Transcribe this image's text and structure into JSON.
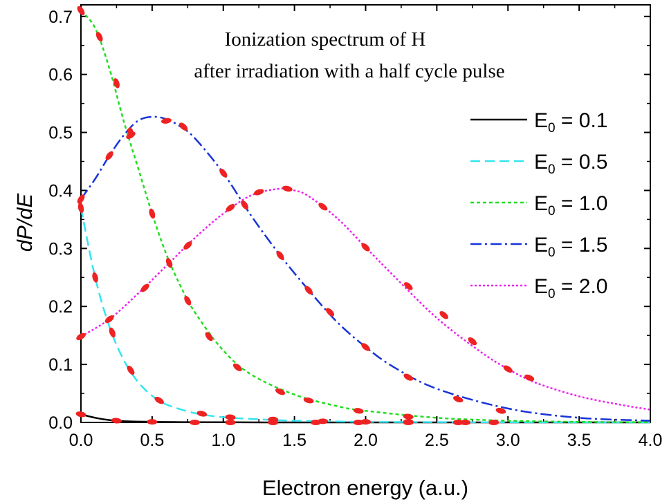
{
  "chart_data": {
    "type": "line",
    "title": "Ionization spectrum of H",
    "subtitle": "after irradiation with a half cycle pulse",
    "xlabel": "Electron energy (a.u.)",
    "ylabel": "dP/dE",
    "xlim": [
      0,
      4.0
    ],
    "ylim": [
      0,
      0.72
    ],
    "x_ticks": [
      "0.0",
      "0.5",
      "1.0",
      "1.5",
      "2.0",
      "2.5",
      "3.0",
      "3.5",
      "4.0"
    ],
    "y_ticks": [
      "0.0",
      "0.1",
      "0.2",
      "0.3",
      "0.4",
      "0.5",
      "0.6",
      "0.7"
    ],
    "grid": false,
    "legend_position": "right",
    "series": [
      {
        "name": "E0 = 0.1",
        "legend_main": "E",
        "legend_sub": "0",
        "legend_value": " = 0.1",
        "color": "#000000",
        "dash": "",
        "x": [
          0,
          0.1,
          0.2,
          0.3,
          0.5,
          0.7,
          1.0,
          1.5,
          2.0,
          3.0,
          4.0
        ],
        "y": [
          0.014,
          0.008,
          0.004,
          0.002,
          0.001,
          0.0005,
          0.0002,
          0,
          0,
          0,
          0
        ]
      },
      {
        "name": "E0 = 0.5",
        "legend_main": "E",
        "legend_sub": "0",
        "legend_value": " = 0.5",
        "color": "#33e5f0",
        "dash": "14 7",
        "x": [
          0,
          0.1,
          0.2,
          0.3,
          0.4,
          0.5,
          0.6,
          0.8,
          1.0,
          1.2,
          1.5,
          2.0,
          2.5,
          3.0,
          4.0
        ],
        "y": [
          0.37,
          0.25,
          0.165,
          0.108,
          0.07,
          0.046,
          0.031,
          0.016,
          0.009,
          0.006,
          0.003,
          0.001,
          0.0005,
          0.0002,
          0
        ]
      },
      {
        "name": "E0 = 1.0",
        "legend_main": "E",
        "legend_sub": "0",
        "legend_value": " = 1.0",
        "color": "#22dd22",
        "dash": "5 4",
        "x": [
          0,
          0.1,
          0.2,
          0.3,
          0.4,
          0.5,
          0.6,
          0.7,
          0.8,
          1.0,
          1.2,
          1.5,
          1.8,
          2.0,
          2.5,
          3.0,
          3.5,
          4.0
        ],
        "y": [
          0.71,
          0.68,
          0.61,
          0.52,
          0.44,
          0.36,
          0.29,
          0.235,
          0.19,
          0.124,
          0.082,
          0.048,
          0.028,
          0.02,
          0.008,
          0.003,
          0.001,
          0.0003
        ]
      },
      {
        "name": "E0 = 1.5",
        "legend_main": "E",
        "legend_sub": "0",
        "legend_value": " = 1.5",
        "color": "#1833d8",
        "dash": "16 5 3 5",
        "x": [
          0,
          0.1,
          0.2,
          0.3,
          0.4,
          0.5,
          0.6,
          0.7,
          0.8,
          1.0,
          1.2,
          1.4,
          1.6,
          1.8,
          2.0,
          2.2,
          2.5,
          3.0,
          3.5,
          4.0
        ],
        "y": [
          0.385,
          0.42,
          0.46,
          0.495,
          0.52,
          0.527,
          0.523,
          0.51,
          0.49,
          0.43,
          0.355,
          0.288,
          0.228,
          0.173,
          0.13,
          0.095,
          0.058,
          0.024,
          0.008,
          0.003
        ]
      },
      {
        "name": "E0 = 2.0",
        "legend_main": "E",
        "legend_sub": "0",
        "legend_value": " = 2.0",
        "color": "#ee22ee",
        "dash": "3 3",
        "x": [
          0,
          0.2,
          0.4,
          0.6,
          0.8,
          1.0,
          1.2,
          1.4,
          1.5,
          1.6,
          1.8,
          2.0,
          2.2,
          2.5,
          2.8,
          3.0,
          3.2,
          3.5,
          3.8,
          4.0
        ],
        "y": [
          0.148,
          0.178,
          0.222,
          0.27,
          0.318,
          0.36,
          0.392,
          0.403,
          0.4,
          0.39,
          0.352,
          0.302,
          0.252,
          0.18,
          0.123,
          0.092,
          0.068,
          0.045,
          0.03,
          0.022
        ]
      }
    ],
    "marker_series": {
      "color": "#ee2222",
      "curves": [
        {
          "x": [
            0,
            0.25,
            0.5,
            0.8,
            1.05,
            1.35,
            1.65,
            1.95,
            2.3,
            2.65,
            2.9
          ],
          "y": [
            0.014,
            0.003,
            0.001,
            0,
            0,
            0,
            0,
            0,
            0,
            0,
            0
          ]
        },
        {
          "x": [
            0,
            0.1,
            0.22,
            0.35,
            0.55,
            0.85,
            1.05,
            1.35,
            1.7,
            2.0,
            2.3,
            2.7
          ],
          "y": [
            0.37,
            0.25,
            0.155,
            0.09,
            0.038,
            0.015,
            0.009,
            0.005,
            0.002,
            0.001,
            0.001,
            0
          ]
        },
        {
          "x": [
            0,
            0.13,
            0.25,
            0.35,
            0.5,
            0.62,
            0.75,
            0.9,
            1.1,
            1.4,
            1.6,
            1.95,
            2.3
          ],
          "y": [
            0.71,
            0.665,
            0.585,
            0.5,
            0.36,
            0.275,
            0.21,
            0.148,
            0.095,
            0.053,
            0.038,
            0.02,
            0.01
          ]
        },
        {
          "x": [
            0,
            0.2,
            0.35,
            0.6,
            0.72,
            1.0,
            1.15,
            1.4,
            1.6,
            1.75,
            2.0,
            2.3,
            2.65,
            2.95
          ],
          "y": [
            0.385,
            0.46,
            0.495,
            0.52,
            0.51,
            0.43,
            0.375,
            0.288,
            0.228,
            0.19,
            0.13,
            0.078,
            0.04,
            0.02
          ]
        },
        {
          "x": [
            0,
            0.2,
            0.45,
            0.75,
            1.05,
            1.25,
            1.45,
            1.7,
            2.0,
            2.3,
            2.55,
            2.75,
            3.0,
            3.15
          ],
          "y": [
            0.148,
            0.178,
            0.232,
            0.305,
            0.37,
            0.397,
            0.403,
            0.372,
            0.302,
            0.235,
            0.185,
            0.14,
            0.092,
            0.077
          ]
        }
      ]
    }
  }
}
